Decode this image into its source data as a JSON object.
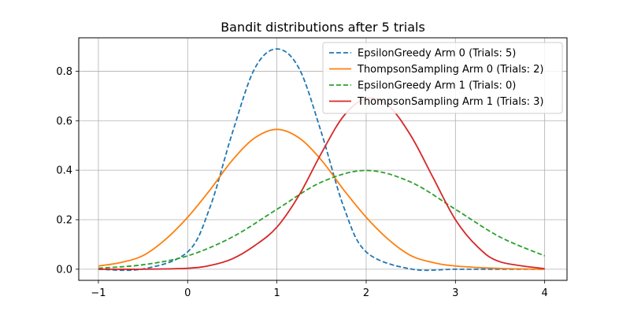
{
  "chart_data": {
    "type": "line",
    "title": "Bandit distributions after 5 trials",
    "xlabel": "",
    "ylabel": "",
    "xlim": [
      -1.22,
      4.25
    ],
    "ylim": [
      -0.045,
      0.935
    ],
    "x_ticks": [
      -1,
      0,
      1,
      2,
      3,
      4
    ],
    "x_tick_labels": [
      "−1",
      "0",
      "1",
      "2",
      "3",
      "4"
    ],
    "y_ticks": [
      0.0,
      0.2,
      0.4,
      0.6,
      0.8
    ],
    "y_tick_labels": [
      "0.0",
      "0.2",
      "0.4",
      "0.6",
      "0.8"
    ],
    "grid": true,
    "legend_position": "top-right",
    "series": [
      {
        "name": "EpsilonGreedy Arm 0 (Trials: 5)",
        "color": "#1f77b4",
        "dash": "dashed",
        "x": [
          -1,
          -0.5,
          0,
          0.25,
          0.5,
          0.75,
          1,
          1.25,
          1.5,
          1.75,
          2,
          2.5,
          3,
          3.5,
          4
        ],
        "y": [
          0.0,
          0.001,
          0.07,
          0.25,
          0.55,
          0.81,
          0.89,
          0.81,
          0.55,
          0.25,
          0.07,
          0.001,
          0.0,
          0.0,
          0.0
        ]
      },
      {
        "name": "ThompsonSampling Arm 0 (Trials: 2)",
        "color": "#ff7f0e",
        "dash": "solid",
        "x": [
          -1,
          -0.75,
          -0.5,
          -0.25,
          0,
          0.25,
          0.5,
          0.75,
          1,
          1.25,
          1.5,
          1.75,
          2,
          2.25,
          2.5,
          2.75,
          3,
          3.5,
          4
        ],
        "y": [
          0.013,
          0.027,
          0.055,
          0.12,
          0.21,
          0.32,
          0.44,
          0.53,
          0.565,
          0.53,
          0.44,
          0.32,
          0.21,
          0.12,
          0.055,
          0.027,
          0.013,
          0.003,
          0.0
        ]
      },
      {
        "name": "EpsilonGreedy Arm 1 (Trials: 0)",
        "color": "#2ca02c",
        "dash": "dashed",
        "x": [
          -1,
          -0.5,
          0,
          0.5,
          1,
          1.5,
          2,
          2.5,
          3,
          3.5,
          4
        ],
        "y": [
          0.004,
          0.018,
          0.054,
          0.13,
          0.242,
          0.352,
          0.399,
          0.352,
          0.242,
          0.13,
          0.054
        ]
      },
      {
        "name": "ThompsonSampling Arm 1 (Trials: 3)",
        "color": "#d62728",
        "dash": "solid",
        "x": [
          -1,
          -0.5,
          0,
          0.25,
          0.5,
          0.75,
          1,
          1.25,
          1.5,
          1.75,
          2,
          2.25,
          2.5,
          2.75,
          3,
          3.25,
          3.5,
          4
        ],
        "y": [
          0.0,
          0.0,
          0.004,
          0.015,
          0.042,
          0.095,
          0.17,
          0.3,
          0.47,
          0.62,
          0.69,
          0.66,
          0.54,
          0.37,
          0.2,
          0.09,
          0.03,
          0.002
        ]
      }
    ]
  }
}
